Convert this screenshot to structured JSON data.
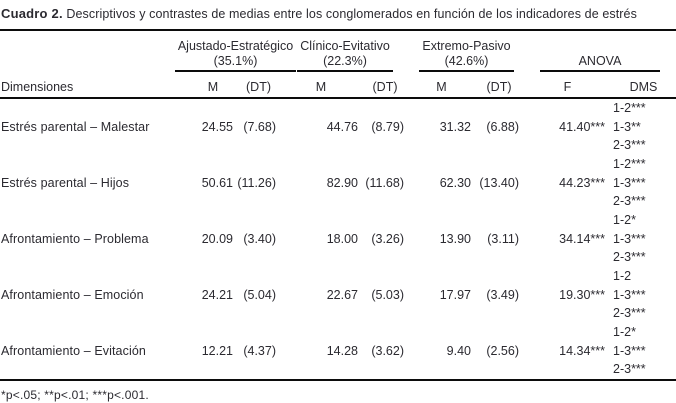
{
  "title": {
    "label": "Cuadro 2.",
    "text": "Descriptivos y contrastes de medias entre los conglomerados en función de los indicadores de estrés"
  },
  "table": {
    "dimensions_label": "Dimensiones",
    "m_label": "M",
    "dt_label": "(DT)",
    "f_label": "F",
    "dms_label": "DMS",
    "anova_label": "ANOVA",
    "groups": [
      {
        "name": "Ajustado-Estratégico",
        "pct": "(35.1%)"
      },
      {
        "name": "Clínico-Evitativo",
        "pct": "(22.3%)"
      },
      {
        "name": "Extremo-Pasivo",
        "pct": "(42.6%)"
      }
    ],
    "rows": [
      {
        "label": "Estrés parental – Malestar",
        "m": [
          "24.55",
          "44.76",
          "31.32"
        ],
        "dt": [
          "(7.68)",
          "(8.79)",
          "(6.88)"
        ],
        "f": "41.40***",
        "dms": [
          "1-2***",
          "1-3**",
          "2-3***"
        ]
      },
      {
        "label": "Estrés parental – Hijos",
        "m": [
          "50.61",
          "82.90",
          "62.30"
        ],
        "dt": [
          "(11.26)",
          "(11.68)",
          "(13.40)"
        ],
        "f": "44.23***",
        "dms": [
          "1-2***",
          "1-3***",
          "2-3***"
        ]
      },
      {
        "label": "Afrontamiento – Problema",
        "m": [
          "20.09",
          "18.00",
          "13.90"
        ],
        "dt": [
          "(3.40)",
          "(3.26)",
          "(3.11)"
        ],
        "f": "34.14***",
        "dms": [
          "1-2*",
          "1-3***",
          "2-3***"
        ]
      },
      {
        "label": "Afrontamiento – Emoción",
        "m": [
          "24.21",
          "22.67",
          "17.97"
        ],
        "dt": [
          "(5.04)",
          "(5.03)",
          "(3.49)"
        ],
        "f": "19.30***",
        "dms": [
          "1-2",
          "1-3***",
          "2-3***"
        ]
      },
      {
        "label": "Afrontamiento – Evitación",
        "m": [
          "12.21",
          "14.28",
          "9.40"
        ],
        "dt": [
          "(4.37)",
          "(3.62)",
          "(2.56)"
        ],
        "f": "14.34***",
        "dms": [
          "1-2*",
          "1-3***",
          "2-3***"
        ]
      }
    ]
  },
  "footnote": "*p<.05; **p<.01; ***p<.001."
}
